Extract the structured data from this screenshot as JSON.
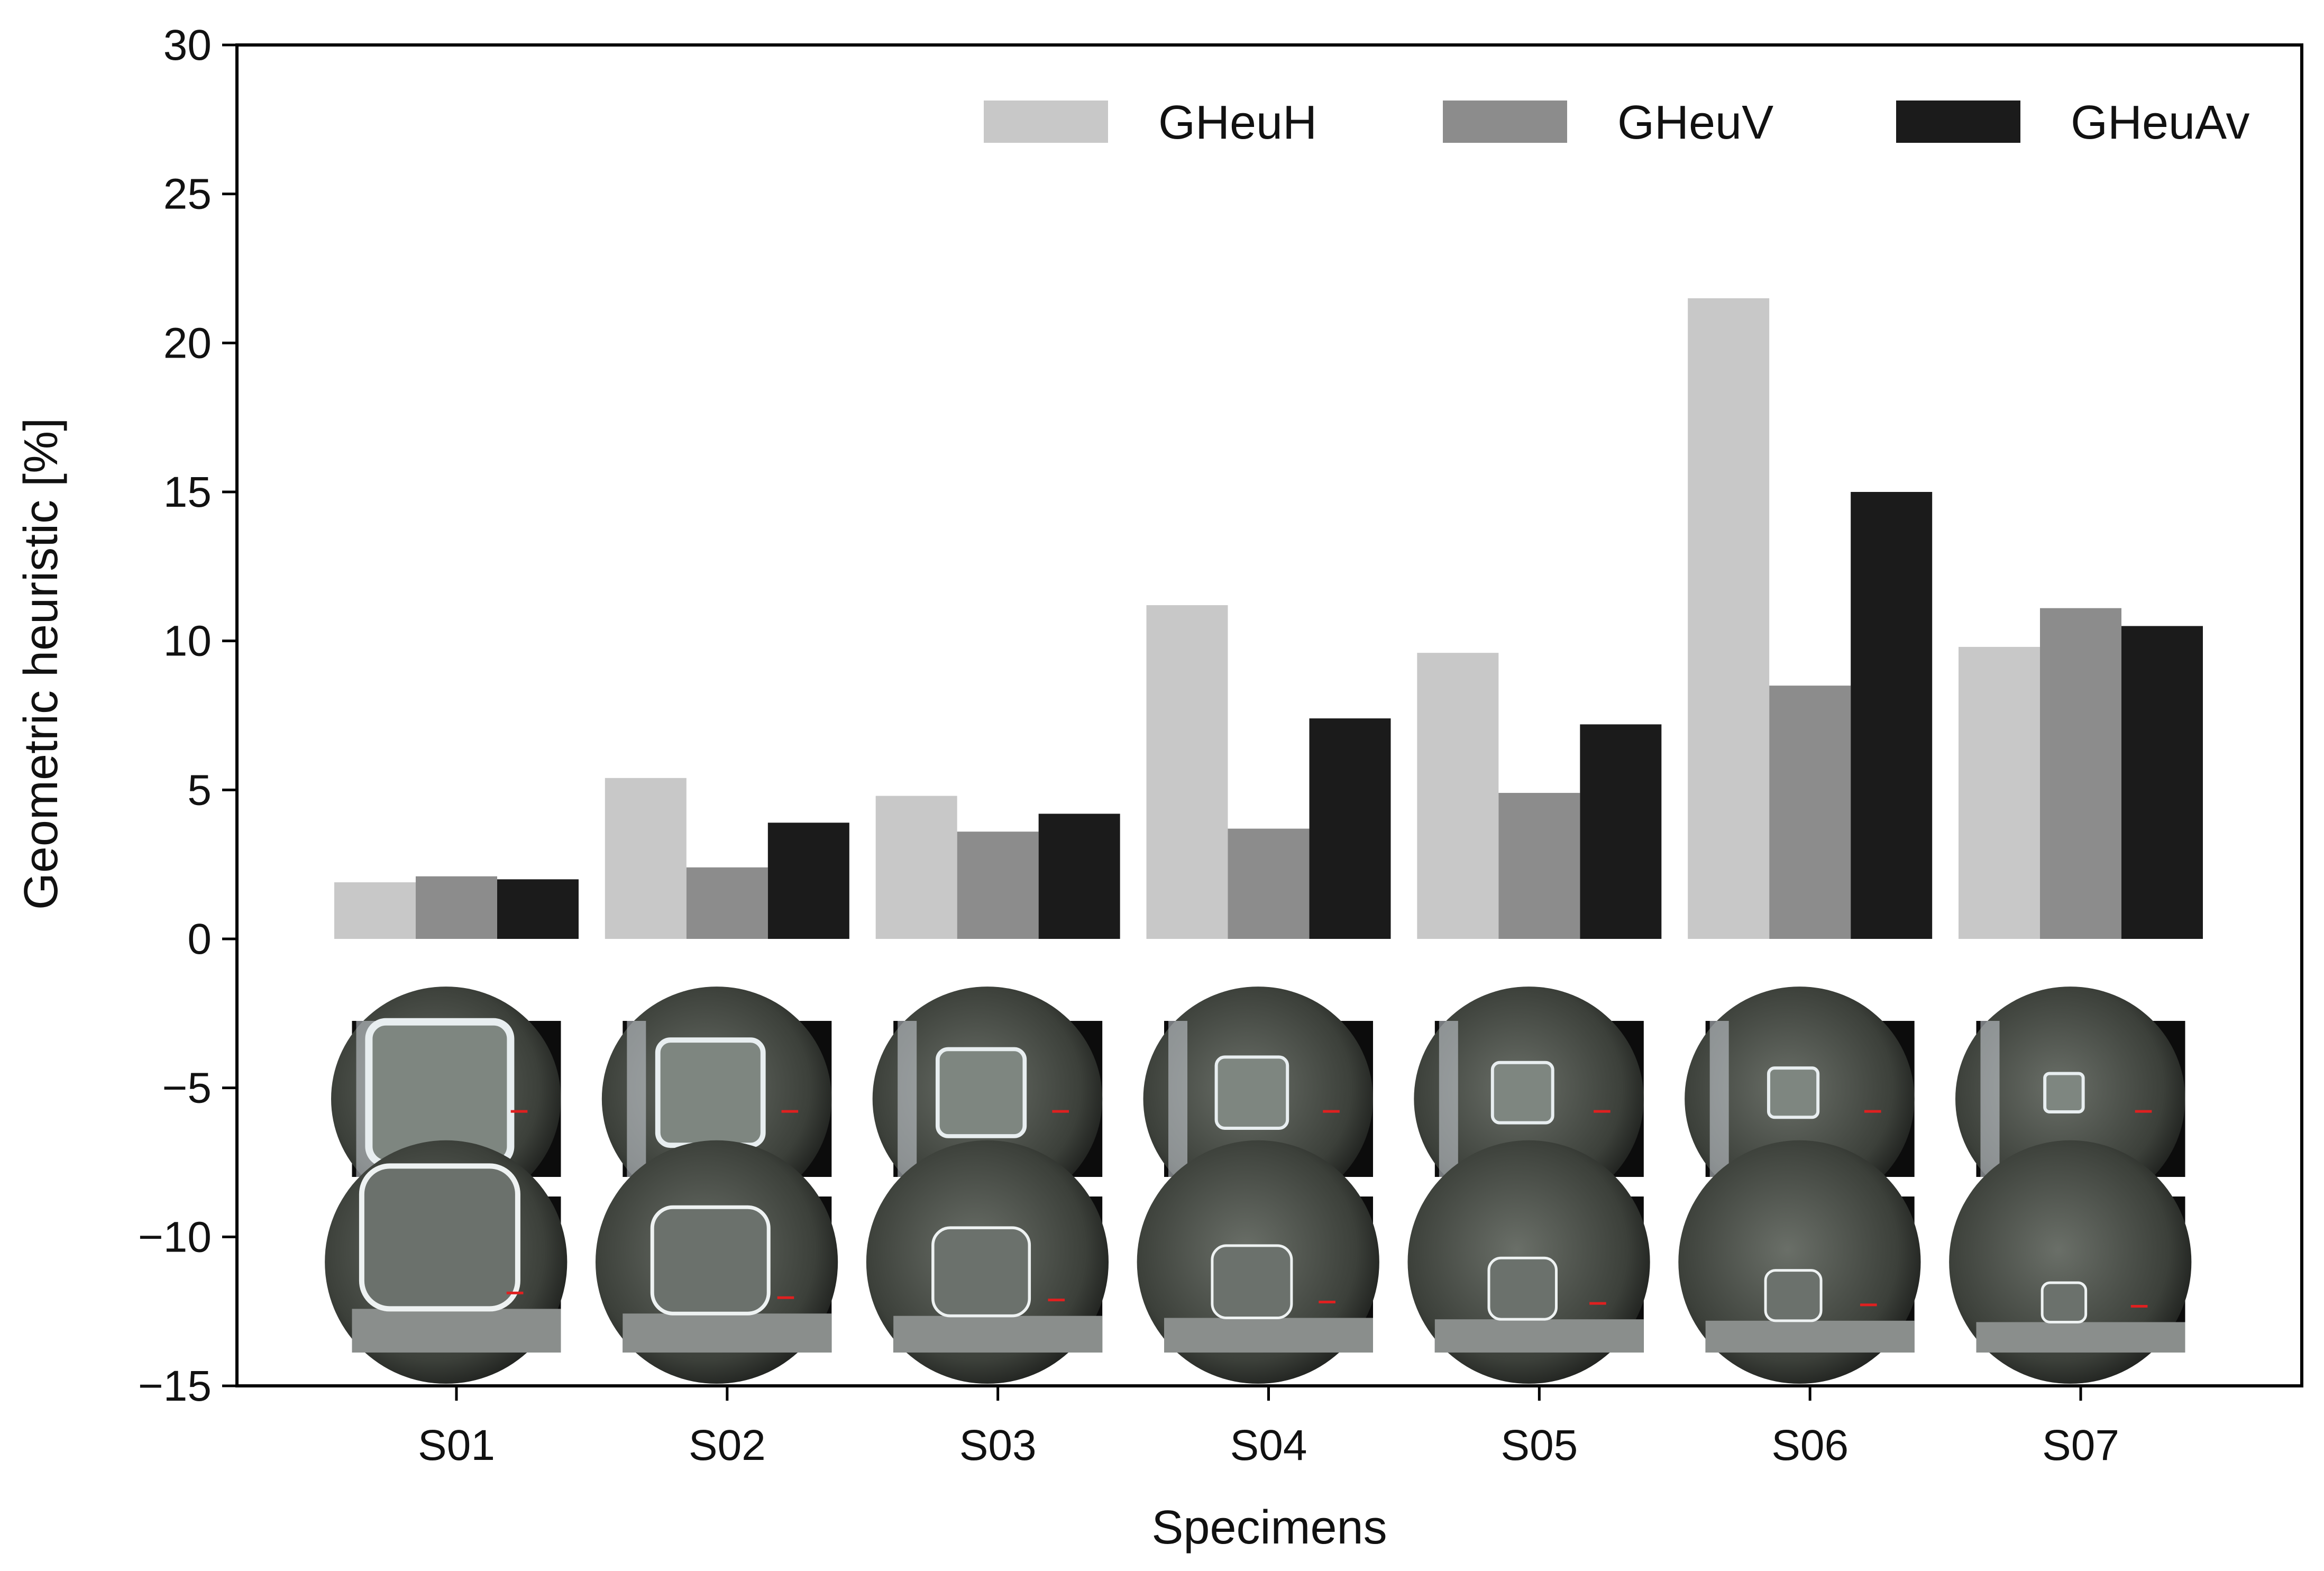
{
  "chart_data": {
    "type": "bar",
    "title": "",
    "xlabel": "Specimens",
    "ylabel": "Geometric heuristic [%]",
    "ylim": [
      -15,
      30
    ],
    "yticks": [
      30,
      25,
      20,
      15,
      10,
      5,
      0,
      -5,
      -10,
      -15
    ],
    "ytick_labels": [
      "30",
      "25",
      "20",
      "15",
      "10",
      "5",
      "0",
      "−5",
      "−10",
      "−15"
    ],
    "categories": [
      "S01",
      "S02",
      "S03",
      "S04",
      "S05",
      "S06",
      "S07"
    ],
    "series": [
      {
        "name": "GHeuH",
        "color": "#c8c8c8",
        "values": [
          1.9,
          5.4,
          4.8,
          11.2,
          9.6,
          21.5,
          9.8
        ]
      },
      {
        "name": "GHeuV",
        "color": "#8c8c8c",
        "values": [
          2.1,
          2.4,
          3.6,
          3.7,
          4.9,
          8.5,
          11.1
        ]
      },
      {
        "name": "GHeuAv",
        "color": "#1b1b1b",
        "values": [
          2.0,
          3.9,
          4.2,
          7.4,
          7.2,
          15.0,
          10.5
        ]
      }
    ],
    "grid": false,
    "legend_position": "top-right",
    "insets": {
      "description_visible": false,
      "rows": [
        "top-view",
        "side-view"
      ],
      "relative_size": [
        1.0,
        0.7,
        0.55,
        0.42,
        0.33,
        0.24,
        0.15
      ]
    }
  }
}
